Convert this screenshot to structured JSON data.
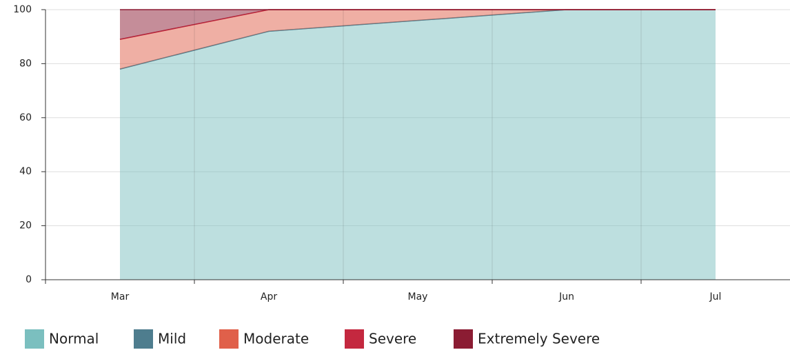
{
  "chart_data": {
    "type": "stacked_area",
    "categories": [
      "Mar",
      "Apr",
      "May",
      "Jun",
      "Jul"
    ],
    "series": [
      {
        "name": "Normal",
        "color": "#7bbfbf",
        "values": [
          78,
          92,
          96,
          100,
          100
        ]
      },
      {
        "name": "Mild",
        "color": "#4e7d8e",
        "values": [
          0,
          0,
          0,
          0,
          0
        ]
      },
      {
        "name": "Moderate",
        "color": "#e0604a",
        "values": [
          11,
          8,
          4,
          0,
          0
        ]
      },
      {
        "name": "Severe",
        "color": "#c4283f",
        "values": [
          0,
          0,
          0,
          0,
          0
        ]
      },
      {
        "name": "Extremely Severe",
        "color": "#8b1c33",
        "values": [
          11,
          0,
          0,
          0,
          0
        ]
      }
    ],
    "ylim": [
      0,
      100
    ],
    "yticks": [
      0,
      20,
      40,
      60,
      80,
      100
    ],
    "grid": true
  }
}
